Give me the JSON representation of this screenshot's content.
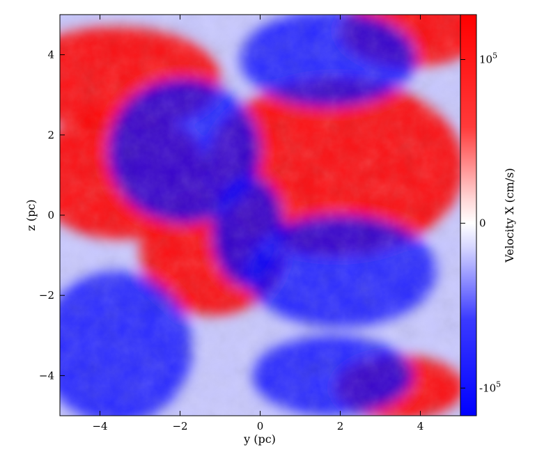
{
  "chart_data": {
    "type": "heatmap",
    "title": "",
    "xlabel": "y  (pc)",
    "ylabel": "z  (pc)",
    "xlim": [
      -5,
      5
    ],
    "ylim": [
      -5,
      5
    ],
    "x_ticks": [
      -4,
      -2,
      0,
      2,
      4
    ],
    "y_ticks": [
      -4,
      -2,
      0,
      2,
      4
    ],
    "x_tick_labels": [
      "−4",
      "−2",
      "0",
      "2",
      "4"
    ],
    "y_tick_labels": [
      "−4",
      "−2",
      "0",
      "2",
      "4"
    ],
    "grid": false,
    "colorbar": {
      "label": "Velocity X  (cm/s)",
      "colormap": "bwr",
      "low_color": "#0000ff",
      "mid_color": "#ffffff",
      "high_color": "#ff0000",
      "scale": "symlog",
      "ticks": [
        {
          "value": 100000,
          "label": "10",
          "exp": "5"
        },
        {
          "value": 0,
          "label": "0",
          "exp": ""
        },
        {
          "value": -100000,
          "label": "-10",
          "exp": "5"
        }
      ]
    },
    "field_regions": [
      {
        "sign": "positive",
        "center": [
          -3.6,
          3.4
        ],
        "extent": [
          2.6,
          1.3
        ]
      },
      {
        "sign": "positive",
        "center": [
          -3.5,
          1.0
        ],
        "extent": [
          2.2,
          1.6
        ]
      },
      {
        "sign": "positive",
        "center": [
          1.9,
          1.2
        ],
        "extent": [
          3.2,
          2.2
        ]
      },
      {
        "sign": "positive",
        "center": [
          -1.2,
          -0.9
        ],
        "extent": [
          1.8,
          1.6
        ]
      },
      {
        "sign": "positive",
        "center": [
          3.8,
          4.6
        ],
        "extent": [
          1.8,
          0.9
        ]
      },
      {
        "sign": "positive",
        "center": [
          3.5,
          -4.3
        ],
        "extent": [
          1.6,
          0.8
        ]
      },
      {
        "sign": "negative",
        "center": [
          -1.9,
          1.6
        ],
        "extent": [
          1.9,
          1.8
        ]
      },
      {
        "sign": "negative",
        "center": [
          1.7,
          3.9
        ],
        "extent": [
          2.2,
          1.2
        ]
      },
      {
        "sign": "negative",
        "center": [
          2.0,
          -1.4
        ],
        "extent": [
          2.4,
          1.4
        ]
      },
      {
        "sign": "negative",
        "center": [
          -3.6,
          -3.3
        ],
        "extent": [
          1.9,
          1.9
        ]
      },
      {
        "sign": "negative",
        "center": [
          1.8,
          -4.0
        ],
        "extent": [
          2.0,
          1.0
        ]
      },
      {
        "sign": "negative",
        "center": [
          -0.3,
          -0.4
        ],
        "extent": [
          0.9,
          1.4
        ]
      }
    ]
  }
}
